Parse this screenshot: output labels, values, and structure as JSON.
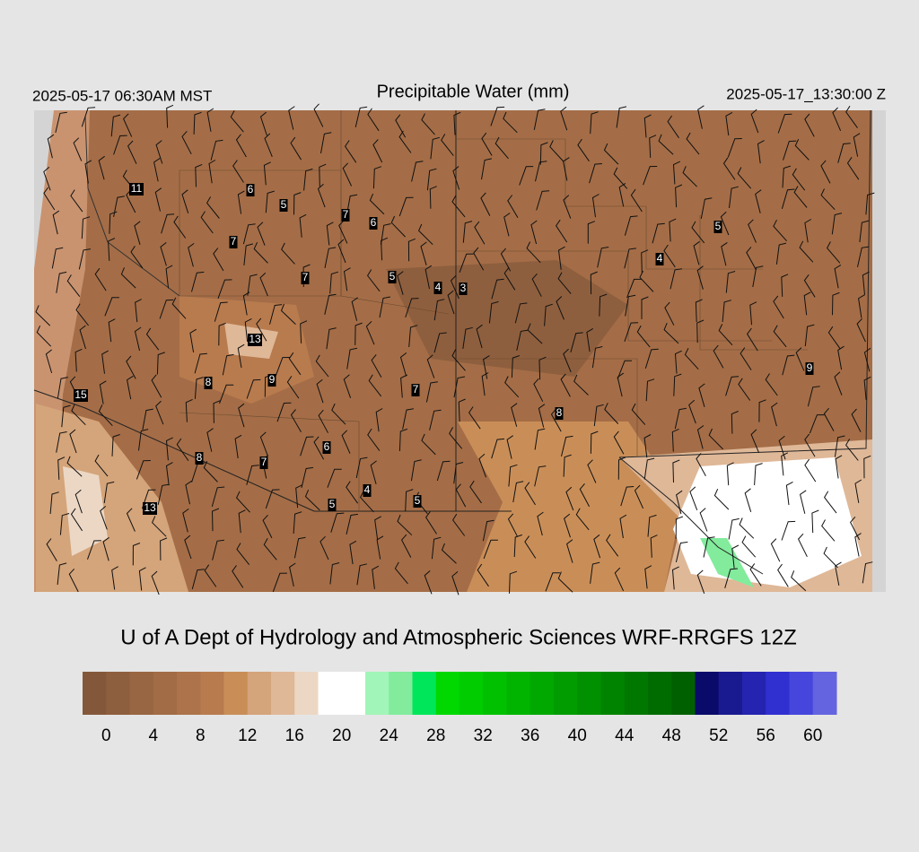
{
  "header": {
    "left": "2025-05-17 06:30AM MST",
    "title": "Precipitable Water (mm)",
    "right": "2025-05-17_13:30:00 Z"
  },
  "stations": [
    11,
    6,
    5,
    7,
    6,
    7,
    7,
    5,
    4,
    3,
    13,
    8,
    9,
    7,
    15,
    6,
    8,
    7,
    4,
    5,
    5,
    13,
    5,
    4,
    9,
    8
  ],
  "credit": "U of A Dept of Hydrology and Atmospheric Sciences WRF-RRGFS 12Z",
  "colorbar": {
    "lim": [
      -2,
      62
    ],
    "ticks": [
      0,
      4,
      8,
      12,
      16,
      20,
      24,
      28,
      32,
      36,
      40,
      44,
      48,
      52,
      56,
      60
    ],
    "colors": [
      "#83583a",
      "#8e5f3e",
      "#986642",
      "#a26c46",
      "#ad734a",
      "#b87b4e",
      "#c98e58",
      "#d4a47a",
      "#dfb898",
      "#ecd7c4",
      "#ffffff",
      "#ffffff",
      "#a2f5b8",
      "#82eb9c",
      "#00e65a",
      "#00d800",
      "#00cc00",
      "#00c000",
      "#00b400",
      "#00a800",
      "#009c00",
      "#009000",
      "#008400",
      "#007800",
      "#006c00",
      "#006000",
      "#0a0a6a",
      "#1a1a90",
      "#2424b0",
      "#3030d0",
      "#4646dc",
      "#6464e0"
    ]
  }
}
